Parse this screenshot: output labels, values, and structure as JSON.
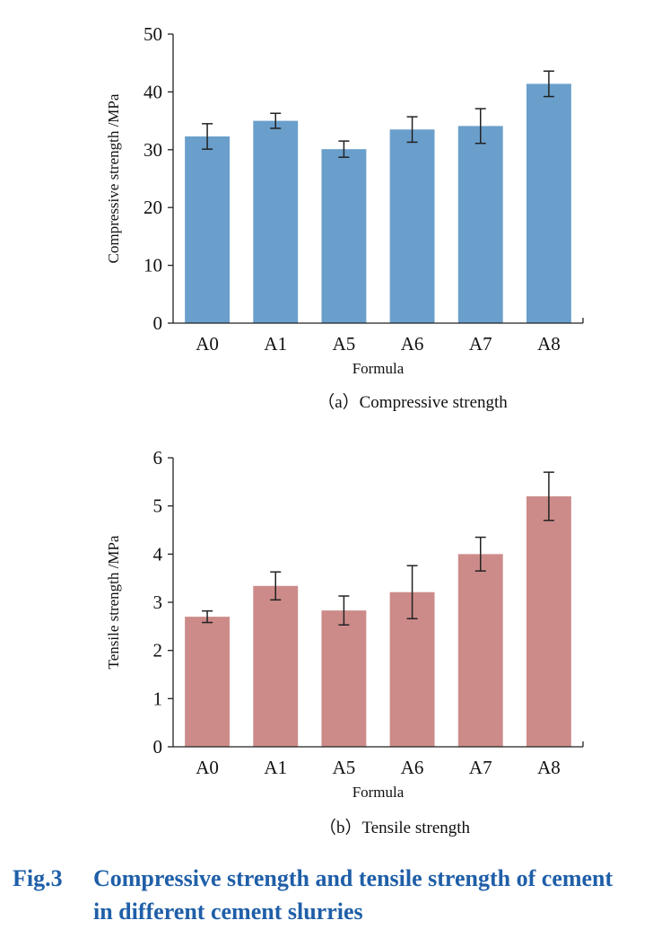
{
  "chart_data": [
    {
      "type": "bar",
      "categories": [
        "A0",
        "A1",
        "A5",
        "A6",
        "A7",
        "A8"
      ],
      "values": [
        32.3,
        35.0,
        30.1,
        33.5,
        34.1,
        41.4
      ],
      "errors": [
        2.2,
        1.3,
        1.4,
        2.2,
        3.0,
        2.2
      ],
      "ylabel": "Compressive strength /MPa",
      "xlabel": "Formula",
      "ylim": [
        0,
        50
      ],
      "yticks": [
        "0",
        "10",
        "20",
        "30",
        "40",
        "50"
      ],
      "caption": "（a）Compressive strength",
      "color": "#6a9fcc",
      "grid": false
    },
    {
      "type": "bar",
      "categories": [
        "A0",
        "A1",
        "A5",
        "A6",
        "A7",
        "A8"
      ],
      "values": [
        2.7,
        3.34,
        2.83,
        3.21,
        4.0,
        5.2
      ],
      "errors": [
        0.12,
        0.29,
        0.3,
        0.55,
        0.35,
        0.5
      ],
      "ylabel": "Tensile strength /MPa",
      "xlabel": "Formula",
      "ylim": [
        0,
        6
      ],
      "yticks": [
        "0",
        "1",
        "2",
        "3",
        "4",
        "5",
        "6"
      ],
      "caption": "（b）Tensile strength",
      "color": "#cc8b89",
      "grid": false
    }
  ],
  "figure_caption": {
    "number": "Fig.3",
    "line1": "Compressive strength and tensile strength of cement",
    "line2": "in different cement slurries"
  }
}
